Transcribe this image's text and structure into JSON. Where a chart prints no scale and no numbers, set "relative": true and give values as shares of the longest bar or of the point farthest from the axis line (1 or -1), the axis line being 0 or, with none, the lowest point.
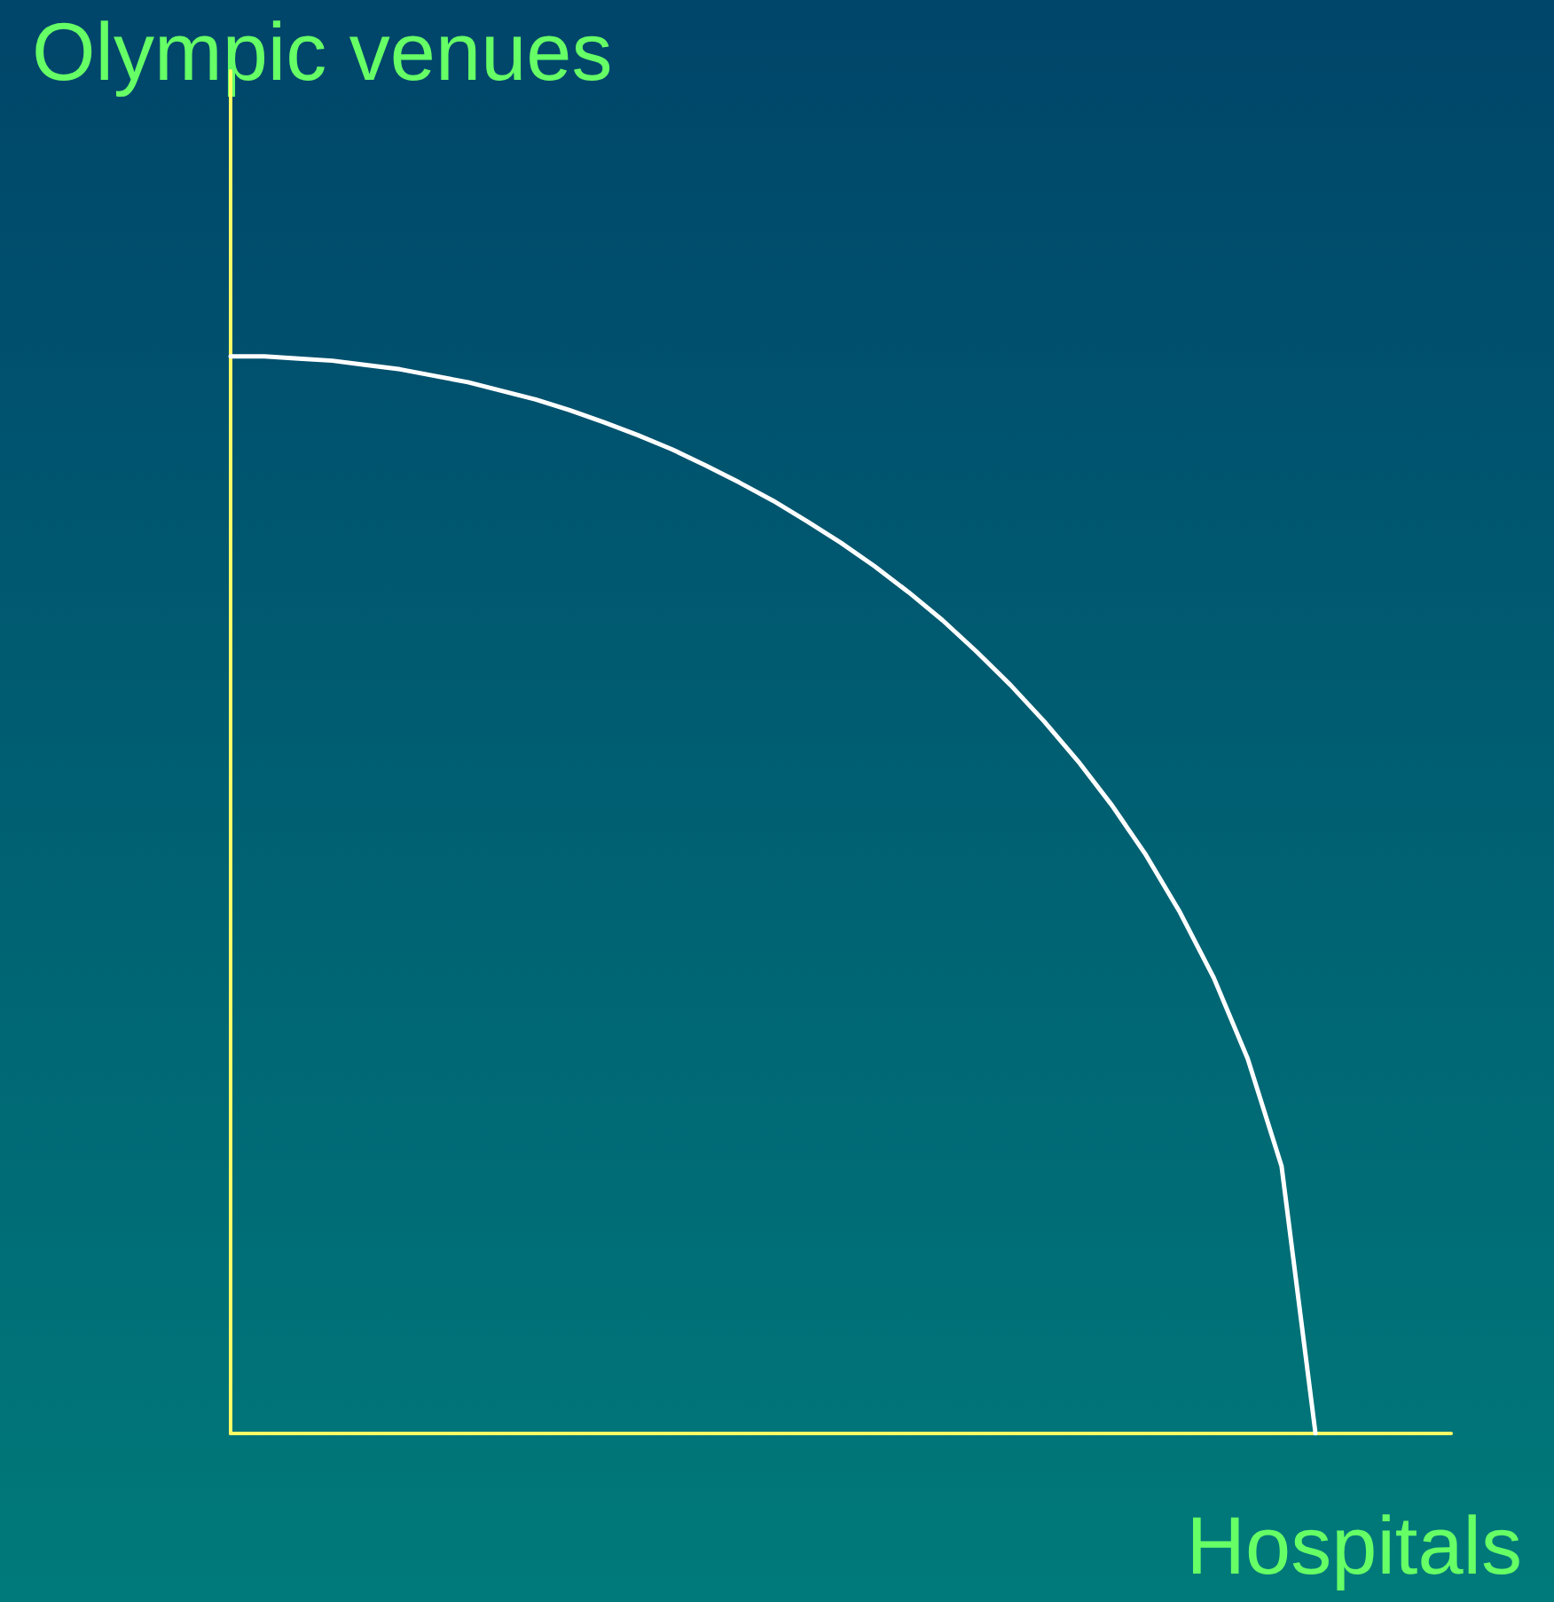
{
  "chart_data": {
    "type": "line",
    "relative": true,
    "xlabel": "Hospitals",
    "ylabel": "Olympic venues",
    "categories": [
      null,
      null,
      null,
      null,
      null,
      null,
      null,
      null,
      null,
      null,
      null,
      null,
      null,
      null,
      null,
      null,
      null,
      null,
      null,
      null,
      null,
      null,
      null,
      null,
      null,
      null,
      null,
      null,
      null,
      null,
      null,
      null,
      null,
      null,
      null,
      null,
      null
    ],
    "series": [
      {
        "color": "#ffffff",
        "values": [
          1,
          1,
          0.998,
          0.996,
          0.992,
          0.988,
          0.982,
          0.976,
          0.968,
          0.96,
          0.95,
          0.939,
          0.927,
          0.914,
          0.899,
          0.883,
          0.866,
          0.847,
          0.827,
          0.805,
          0.781,
          0.755,
          0.726,
          0.695,
          0.661,
          0.624,
          0.583,
          0.537,
          0.484,
          0.423,
          0.348,
          0.248,
          0,
          null,
          null,
          null,
          null
        ]
      }
    ],
    "marker": "none",
    "line_style": "solid"
  }
}
